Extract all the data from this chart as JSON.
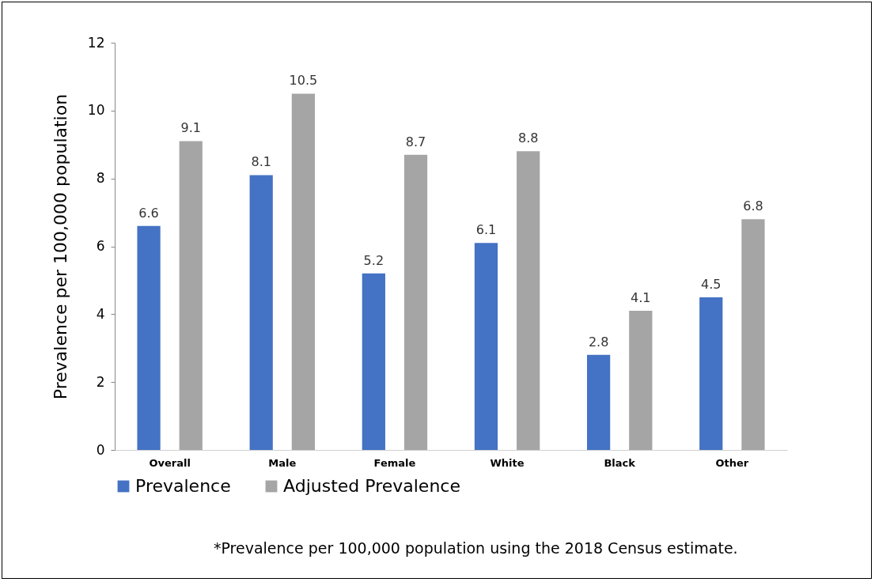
{
  "chart_data": {
    "type": "bar",
    "ylabel": "Prevalence per 100,000 population",
    "categories": [
      "Overall",
      "Male",
      "Female",
      "White",
      "Black",
      "Other"
    ],
    "series": [
      {
        "name": "Prevalence",
        "color": "#4472c4",
        "values": [
          6.6,
          8.1,
          5.2,
          6.1,
          2.8,
          4.5
        ]
      },
      {
        "name": "Adjusted Prevalence",
        "color": "#a5a5a5",
        "values": [
          9.1,
          10.5,
          8.7,
          8.8,
          4.1,
          6.8
        ]
      }
    ],
    "ylim": [
      0,
      12
    ],
    "yticks": [
      0,
      2,
      4,
      6,
      8,
      10,
      12
    ],
    "grid": false,
    "data_labels": true,
    "legend": "bottom",
    "annotations": [
      "*Prevalence per 100,000 population using the 2018 Census estimate."
    ]
  }
}
